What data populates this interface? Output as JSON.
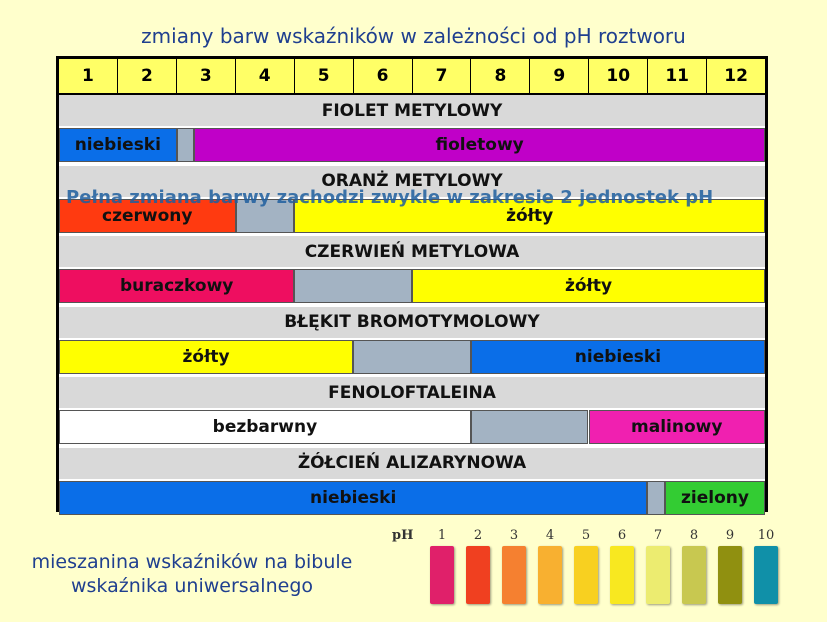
{
  "title": "zmiany barw wskaźników w zależności od pH roztworu",
  "ph_scale": [
    "1",
    "2",
    "3",
    "4",
    "5",
    "6",
    "7",
    "8",
    "9",
    "10",
    "11",
    "12"
  ],
  "indicators": [
    {
      "name": "FIOLET METYLOWY",
      "segments": [
        {
          "label": "niebieski",
          "from": 0,
          "to": 2.0,
          "color": "#0a6ee8"
        },
        {
          "label": "",
          "from": 2.0,
          "to": 2.3,
          "color": "#a3b3c3"
        },
        {
          "label": "fioletowy",
          "from": 2.3,
          "to": 12,
          "color": "#c000c8"
        }
      ]
    },
    {
      "name": "ORANŻ METYLOWY",
      "segments": [
        {
          "label": "czerwony",
          "from": 0,
          "to": 3.0,
          "color": "#ff3a10"
        },
        {
          "label": "",
          "from": 3.0,
          "to": 4.0,
          "color": "#a3b3c3"
        },
        {
          "label": "żółty",
          "from": 4.0,
          "to": 12,
          "color": "#ffff00"
        }
      ]
    },
    {
      "name": "CZERWIEŃ METYLOWA",
      "segments": [
        {
          "label": "buraczkowy",
          "from": 0,
          "to": 4.0,
          "color": "#ee0e60"
        },
        {
          "label": "",
          "from": 4.0,
          "to": 6.0,
          "color": "#a3b3c3"
        },
        {
          "label": "żółty",
          "from": 6.0,
          "to": 12,
          "color": "#ffff00"
        }
      ]
    },
    {
      "name": "BŁĘKIT BROMOTYMOLOWY",
      "segments": [
        {
          "label": "żółty",
          "from": 0,
          "to": 5.0,
          "color": "#ffff00"
        },
        {
          "label": "",
          "from": 5.0,
          "to": 7.0,
          "color": "#a3b3c3"
        },
        {
          "label": "niebieski",
          "from": 7.0,
          "to": 12,
          "color": "#0a6ee8"
        }
      ]
    },
    {
      "name": "FENOLOFTALEINA",
      "segments": [
        {
          "label": "bezbarwny",
          "from": 0,
          "to": 7.0,
          "color": "#ffffff"
        },
        {
          "label": "",
          "from": 7.0,
          "to": 9.0,
          "color": "#a3b3c3"
        },
        {
          "label": "malinowy",
          "from": 9.0,
          "to": 12,
          "color": "#f020b0"
        }
      ]
    },
    {
      "name": "ŻÓŁCIEŃ ALIZARYNOWA",
      "segments": [
        {
          "label": "niebieski",
          "from": 0,
          "to": 10.0,
          "color": "#0a6ee8"
        },
        {
          "label": "",
          "from": 10.0,
          "to": 10.3,
          "color": "#a3b3c3"
        },
        {
          "label": "zielony",
          "from": 10.3,
          "to": 12,
          "color": "#33cc33"
        }
      ]
    }
  ],
  "note": "Pełna zmiana barwy zachodzi zwykle w zakresie 2 jednostek pH",
  "bottom_label": "mieszanina wskaźników na bibule wskaźnika uniwersalnego",
  "strip": {
    "ph_label": "pH",
    "numbers": [
      "1",
      "2",
      "3",
      "4",
      "5",
      "6",
      "7",
      "8",
      "9",
      "10"
    ],
    "colors": [
      "#e0206a",
      "#f04020",
      "#f58030",
      "#f8b030",
      "#f8d020",
      "#f8e820",
      "#ecec70",
      "#c8c850",
      "#909010",
      "#1090a8"
    ]
  }
}
